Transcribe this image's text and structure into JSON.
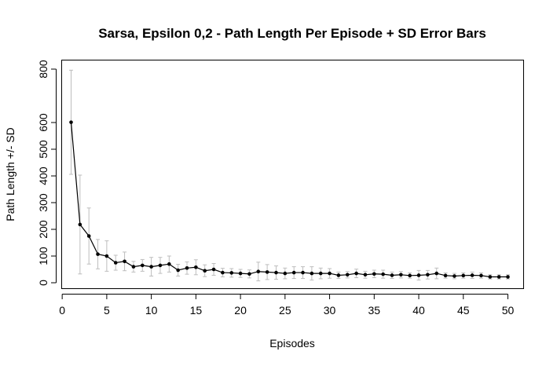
{
  "chart_data": {
    "type": "line",
    "title": "Sarsa, Epsilon 0,2 - Path Length Per Episode + SD Error Bars",
    "xlabel": "Episodes",
    "ylabel": "Path Length +/- SD",
    "xlim": [
      1,
      50
    ],
    "ylim": [
      0,
      800
    ],
    "x_ticks": [
      0,
      5,
      10,
      15,
      20,
      25,
      30,
      35,
      40,
      45,
      50
    ],
    "y_ticks": [
      0,
      100,
      200,
      300,
      400,
      500,
      600,
      800
    ],
    "grid": false,
    "legend": "none",
    "colors": {
      "line": "#000000",
      "points": "#000000",
      "error_bars": "#bdbdbd"
    },
    "x": [
      1,
      2,
      3,
      4,
      5,
      6,
      7,
      8,
      9,
      10,
      11,
      12,
      13,
      14,
      15,
      16,
      17,
      18,
      19,
      20,
      21,
      22,
      23,
      24,
      25,
      26,
      27,
      28,
      29,
      30,
      31,
      32,
      33,
      34,
      35,
      36,
      37,
      38,
      39,
      40,
      41,
      42,
      43,
      44,
      45,
      46,
      47,
      48,
      49,
      50
    ],
    "y": [
      601,
      218,
      175,
      107,
      100,
      75,
      80,
      60,
      65,
      60,
      65,
      70,
      47,
      55,
      58,
      45,
      50,
      38,
      37,
      35,
      33,
      42,
      40,
      38,
      35,
      38,
      38,
      35,
      35,
      35,
      28,
      30,
      35,
      30,
      33,
      32,
      28,
      30,
      27,
      28,
      30,
      35,
      27,
      25,
      27,
      28,
      27,
      22,
      22,
      22
    ],
    "sd": [
      195,
      185,
      105,
      55,
      57,
      28,
      35,
      20,
      22,
      35,
      30,
      30,
      22,
      23,
      28,
      22,
      22,
      16,
      16,
      15,
      15,
      35,
      28,
      25,
      20,
      22,
      22,
      25,
      20,
      18,
      12,
      12,
      16,
      13,
      14,
      15,
      12,
      12,
      10,
      18,
      16,
      20,
      10,
      10,
      10,
      12,
      10,
      8,
      8,
      8
    ]
  }
}
